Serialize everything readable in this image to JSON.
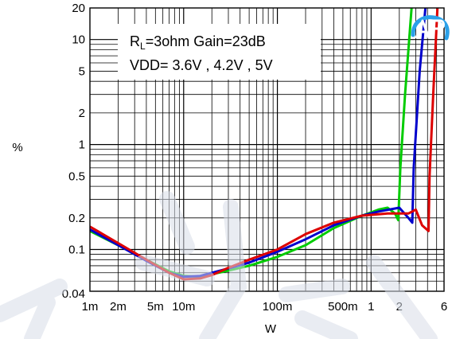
{
  "chart_data": {
    "type": "line",
    "xscale": "log",
    "yscale": "log",
    "xlim": [
      0.001,
      6
    ],
    "ylim": [
      0.04,
      20
    ],
    "xlabel": "W",
    "ylabel": "%",
    "grid": true,
    "x_ticks": [
      {
        "value": 0.001,
        "label": "1m"
      },
      {
        "value": 0.002,
        "label": "2m"
      },
      {
        "value": 0.005,
        "label": "5m"
      },
      {
        "value": 0.01,
        "label": "10m"
      },
      {
        "value": 0.1,
        "label": "100m"
      },
      {
        "value": 0.5,
        "label": "500m"
      },
      {
        "value": 1,
        "label": "1"
      },
      {
        "value": 2,
        "label": "2"
      },
      {
        "value": 6,
        "label": "6"
      }
    ],
    "y_ticks": [
      {
        "value": 0.04,
        "label": "0.04"
      },
      {
        "value": 0.1,
        "label": "0.1"
      },
      {
        "value": 0.2,
        "label": "0.2"
      },
      {
        "value": 0.5,
        "label": "0.5"
      },
      {
        "value": 1,
        "label": "1"
      },
      {
        "value": 2,
        "label": "2"
      },
      {
        "value": 5,
        "label": "5"
      },
      {
        "value": 10,
        "label": "10"
      },
      {
        "value": 20,
        "label": "20"
      }
    ],
    "annotation": {
      "line1_main": "R",
      "line1_sub": "L",
      "line1_rest": "=3ohm Gain=23dB",
      "line2": "VDD= 3.6V , 4.2V , 5V"
    },
    "series": [
      {
        "color": "#00cc00",
        "points": [
          [
            0.001,
            0.15
          ],
          [
            0.002,
            0.11
          ],
          [
            0.004,
            0.08
          ],
          [
            0.007,
            0.062
          ],
          [
            0.01,
            0.056
          ],
          [
            0.015,
            0.055
          ],
          [
            0.02,
            0.058
          ],
          [
            0.03,
            0.063
          ],
          [
            0.05,
            0.07
          ],
          [
            0.1,
            0.085
          ],
          [
            0.2,
            0.11
          ],
          [
            0.4,
            0.16
          ],
          [
            0.8,
            0.21
          ],
          [
            1.2,
            0.24
          ],
          [
            1.5,
            0.25
          ],
          [
            1.8,
            0.22
          ],
          [
            1.95,
            0.19
          ],
          [
            2.05,
            0.6
          ],
          [
            2.3,
            3
          ],
          [
            2.7,
            20
          ]
        ]
      },
      {
        "color": "#0000cc",
        "points": [
          [
            0.001,
            0.155
          ],
          [
            0.002,
            0.11
          ],
          [
            0.004,
            0.078
          ],
          [
            0.007,
            0.06
          ],
          [
            0.01,
            0.055
          ],
          [
            0.015,
            0.056
          ],
          [
            0.02,
            0.06
          ],
          [
            0.03,
            0.066
          ],
          [
            0.05,
            0.075
          ],
          [
            0.1,
            0.095
          ],
          [
            0.2,
            0.125
          ],
          [
            0.4,
            0.17
          ],
          [
            0.8,
            0.21
          ],
          [
            1.2,
            0.23
          ],
          [
            2,
            0.25
          ],
          [
            2.5,
            0.2
          ],
          [
            2.75,
            0.18
          ],
          [
            2.85,
            0.6
          ],
          [
            3.3,
            5
          ],
          [
            3.8,
            20
          ]
        ]
      },
      {
        "color": "#dd0000",
        "points": [
          [
            0.001,
            0.165
          ],
          [
            0.002,
            0.115
          ],
          [
            0.004,
            0.08
          ],
          [
            0.007,
            0.06
          ],
          [
            0.01,
            0.052
          ],
          [
            0.015,
            0.053
          ],
          [
            0.02,
            0.057
          ],
          [
            0.03,
            0.067
          ],
          [
            0.05,
            0.08
          ],
          [
            0.1,
            0.1
          ],
          [
            0.2,
            0.14
          ],
          [
            0.4,
            0.18
          ],
          [
            0.8,
            0.21
          ],
          [
            1.5,
            0.22
          ],
          [
            2.5,
            0.22
          ],
          [
            3,
            0.24
          ],
          [
            3.5,
            0.17
          ],
          [
            4.1,
            0.15
          ],
          [
            4.2,
            0.5
          ],
          [
            4.6,
            3
          ],
          [
            5.1,
            20
          ]
        ]
      }
    ]
  }
}
